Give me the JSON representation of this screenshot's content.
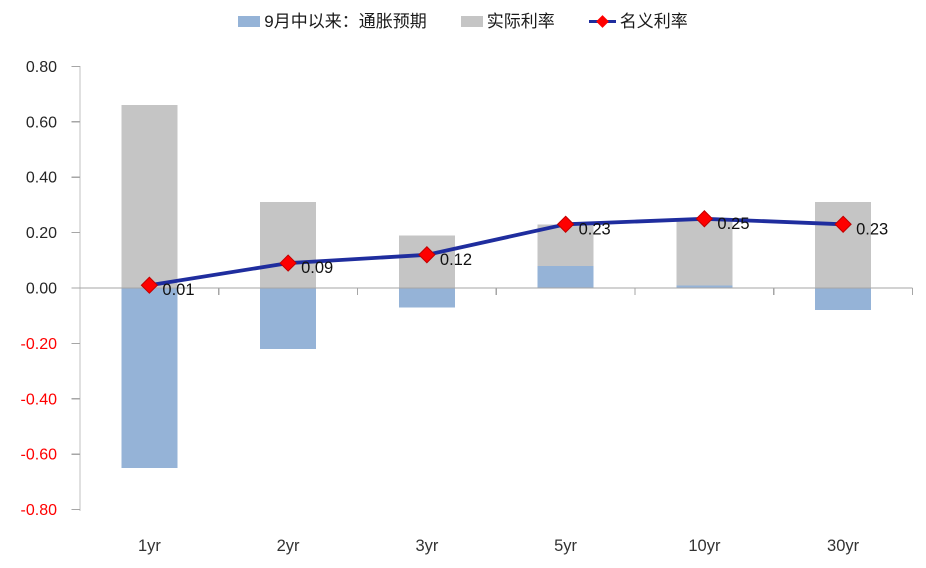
{
  "legend": {
    "items": [
      {
        "label": "9月中以来：通胀预期",
        "marker": "square",
        "color": "#95B3D7"
      },
      {
        "label": "实际利率",
        "marker": "square",
        "color": "#C5C5C5"
      },
      {
        "label": "名义利率",
        "marker": "line-diamond",
        "line_color": "#1F2D9E",
        "marker_color": "#FE0000"
      }
    ]
  },
  "chart_data": {
    "type": "combo: stacked-bar + line",
    "title": "",
    "xlabel": "",
    "ylabel": "",
    "categories": [
      "1yr",
      "2yr",
      "3yr",
      "5yr",
      "10yr",
      "30yr"
    ],
    "series": [
      {
        "name": "9月中以来：通胀预期",
        "chart_type": "bar",
        "stacked": true,
        "color": "#95B3D7",
        "values": [
          -0.65,
          -0.22,
          -0.07,
          0.08,
          0.01,
          -0.08
        ]
      },
      {
        "name": "实际利率",
        "chart_type": "bar",
        "stacked": true,
        "color": "#C5C5C5",
        "values": [
          0.66,
          0.31,
          0.19,
          0.15,
          0.24,
          0.31
        ]
      },
      {
        "name": "名义利率",
        "chart_type": "line",
        "color": "#1F2D9E",
        "marker": "diamond",
        "marker_color": "#FE0000",
        "marker_outline": "#C00000",
        "values": [
          0.01,
          0.09,
          0.12,
          0.23,
          0.25,
          0.23
        ],
        "point_labels": [
          "0.01",
          "0.09",
          "0.12",
          "0.23",
          "0.25",
          "0.23"
        ]
      }
    ],
    "y_axis": {
      "min": -0.8,
      "max": 0.8,
      "step": 0.2,
      "tick_labels": [
        "0.80",
        "0.60",
        "0.40",
        "0.20",
        "0.00",
        "-0.20",
        "-0.40",
        "-0.60",
        "-0.80"
      ],
      "label_color_positive": "#262626",
      "label_color_negative": "#FF0000"
    },
    "grid": false,
    "legend_position": "top",
    "axis_colors": {
      "y_axis_line": "#C0C0C0",
      "zero_line": "#A6A6A6",
      "tick": "#A6A6A6",
      "x_label_color": "#333333",
      "point_label_color": "#111111"
    }
  }
}
